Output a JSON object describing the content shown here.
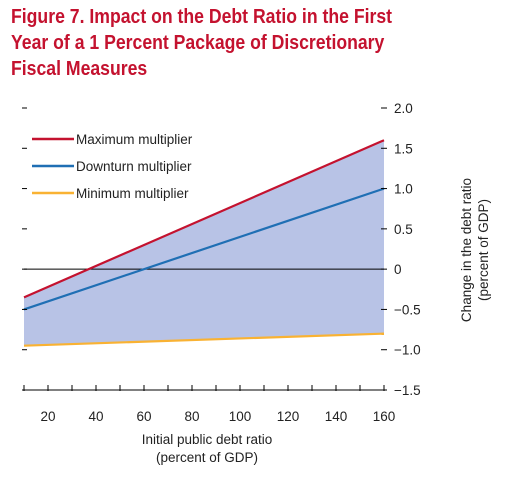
{
  "figure": {
    "title_lines": [
      "Figure 7. Impact on the Debt Ratio in the First",
      "Year of a 1 Percent Package of Discretionary",
      "Fiscal Measures"
    ]
  },
  "chart_data": {
    "type": "line",
    "xlabel_lines": [
      "Initial public debt ratio",
      "(percent of GDP)"
    ],
    "ylabel_lines": [
      "Change in the debt ratio",
      "(percent of GDP)"
    ],
    "xlim": [
      10,
      160
    ],
    "ylim": [
      -1.5,
      2.0
    ],
    "x_ticks": [
      20,
      40,
      60,
      80,
      100,
      120,
      140,
      160
    ],
    "y_ticks": [
      2.0,
      1.5,
      1.0,
      0.5,
      0,
      -0.5,
      -1.0,
      -1.5
    ],
    "y_tick_labels": [
      "2.0",
      "1.5",
      "1.0",
      "0.5",
      "0",
      "−0.5",
      "−1.0",
      "−1.5"
    ],
    "zero_line": true,
    "grid": false,
    "legend_position": "top-left",
    "shaded_band": {
      "between": [
        "Minimum multiplier",
        "Maximum multiplier"
      ],
      "color": "#b8c3e6"
    },
    "series": [
      {
        "name": "Maximum multiplier",
        "color": "#c4122f",
        "x": [
          10,
          160
        ],
        "y": [
          -0.35,
          1.6
        ]
      },
      {
        "name": "Downturn multiplier",
        "color": "#1f6fb4",
        "x": [
          10,
          160
        ],
        "y": [
          -0.5,
          1.0
        ]
      },
      {
        "name": "Minimum multiplier",
        "color": "#f9b233",
        "x": [
          10,
          160
        ],
        "y": [
          -0.95,
          -0.8
        ]
      }
    ]
  }
}
